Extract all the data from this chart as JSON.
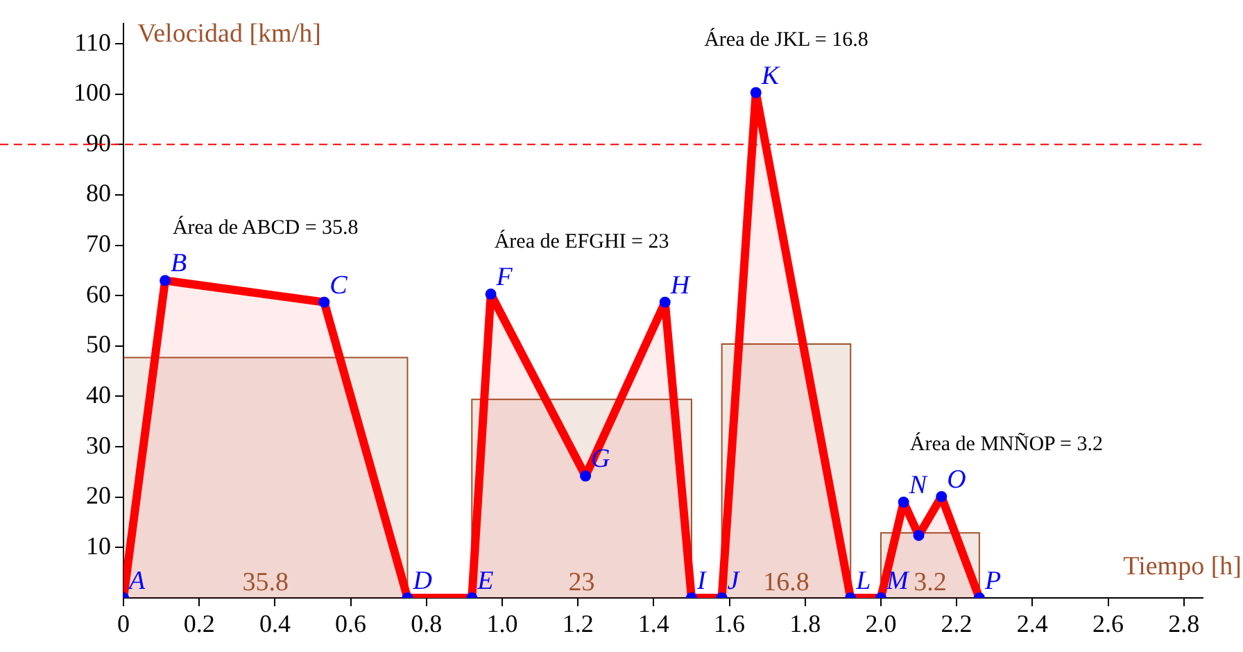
{
  "chart_data": {
    "type": "area",
    "xlabel": "Tiempo [h]",
    "ylabel": "Velocidad [km/h]",
    "xlim": [
      0,
      2.85
    ],
    "ylim": [
      0,
      114
    ],
    "xticks": [
      0,
      0.2,
      0.4,
      0.6,
      0.8,
      {
        "value": 1,
        "label": "1.0"
      },
      1.2,
      1.4,
      1.6,
      1.8,
      {
        "value": 2,
        "label": "2.0"
      },
      2.2,
      2.4,
      2.6,
      2.8
    ],
    "yticks": [
      10,
      20,
      30,
      40,
      50,
      60,
      70,
      80,
      90,
      100,
      110
    ],
    "grid": false,
    "legend": false,
    "series": [
      {
        "type": "step",
        "color": "#a0522d",
        "x": [
          0,
          0.75,
          0.92,
          1.5,
          1.58,
          1.92,
          2.0,
          2.26
        ],
        "values": [
          47.7,
          0,
          39.4,
          0,
          50.4,
          0,
          12.9,
          0
        ]
      },
      {
        "color": "#ff0000",
        "marker": "none",
        "x": [
          0,
          0.11,
          0.53,
          0.75,
          0.92,
          0.97,
          1.22,
          1.43,
          1.5,
          1.58,
          1.67,
          1.92,
          2.0,
          2.06,
          2.1,
          2.16,
          2.26
        ],
        "values": [
          0,
          63,
          58.7,
          0,
          0,
          60.3,
          24.2,
          58.7,
          0,
          0,
          100.3,
          0,
          0,
          19,
          12.4,
          20.1,
          0
        ]
      },
      {
        "type": "scatter",
        "color": "#0000ff",
        "marker": "circle",
        "x": [
          0,
          0.11,
          0.53,
          0.75,
          0.92,
          0.97,
          1.22,
          1.43,
          1.5,
          1.58,
          1.67,
          1.92,
          2.0,
          2.06,
          2.1,
          2.16,
          2.26
        ],
        "values": [
          0,
          63,
          58.7,
          0,
          0,
          60.3,
          24.2,
          58.7,
          0,
          0,
          100.3,
          0,
          0,
          19,
          12.4,
          20.1,
          0
        ],
        "value_labels": [
          "A",
          "B",
          "C",
          "D",
          "E",
          "F",
          "G",
          "H",
          "I",
          "J",
          "K",
          "L",
          "M",
          "N",
          null,
          "O",
          "P"
        ]
      }
    ],
    "ref_lines": [
      {
        "axis": "y",
        "value": 90,
        "color": "#ff0000",
        "line_style": "dashed"
      }
    ],
    "annotations": [
      "Área de ABCD = 35.8",
      "Área de EFGHI = 23",
      "Área de JKL = 16.8",
      "Área de MNÑOP = 3.2",
      "35.8",
      "23",
      "16.8",
      "3.2"
    ]
  }
}
